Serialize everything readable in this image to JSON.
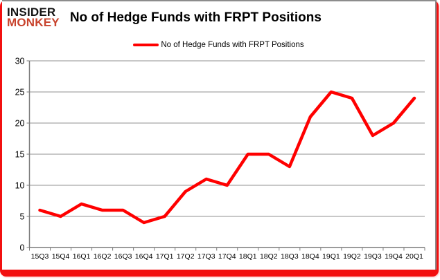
{
  "header": {
    "logo_line1": "INSIDER",
    "logo_line2": "MONKEY",
    "title": "No of Hedge Funds with FRPT Positions"
  },
  "legend": {
    "label": "No of Hedge Funds with FRPT Positions"
  },
  "colors": {
    "line": "#ff0000",
    "logo_accent": "#c8432d",
    "frame_red": "#f21010",
    "grid": "#929292",
    "axis": "#7a7a7a",
    "text": "#000000"
  },
  "chart_data": {
    "type": "line",
    "title": "No of Hedge Funds with FRPT Positions",
    "xlabel": "",
    "ylabel": "",
    "categories": [
      "15Q3",
      "15Q4",
      "16Q1",
      "16Q2",
      "16Q3",
      "16Q4",
      "17Q1",
      "17Q2",
      "17Q3",
      "17Q4",
      "18Q1",
      "18Q2",
      "18Q3",
      "18Q4",
      "19Q1",
      "19Q2",
      "19Q3",
      "19Q4",
      "20Q1"
    ],
    "series": [
      {
        "name": "No of Hedge Funds with FRPT Positions",
        "values": [
          6,
          5,
          7,
          6,
          6,
          4,
          5,
          9,
          11,
          10,
          15,
          15,
          13,
          21,
          25,
          24,
          18,
          20,
          24
        ],
        "color": "#ff0000"
      }
    ],
    "ylim": [
      0,
      30
    ],
    "yticks": [
      0,
      5,
      10,
      15,
      20,
      25,
      30
    ],
    "grid": true,
    "legend_position": "top-center"
  }
}
